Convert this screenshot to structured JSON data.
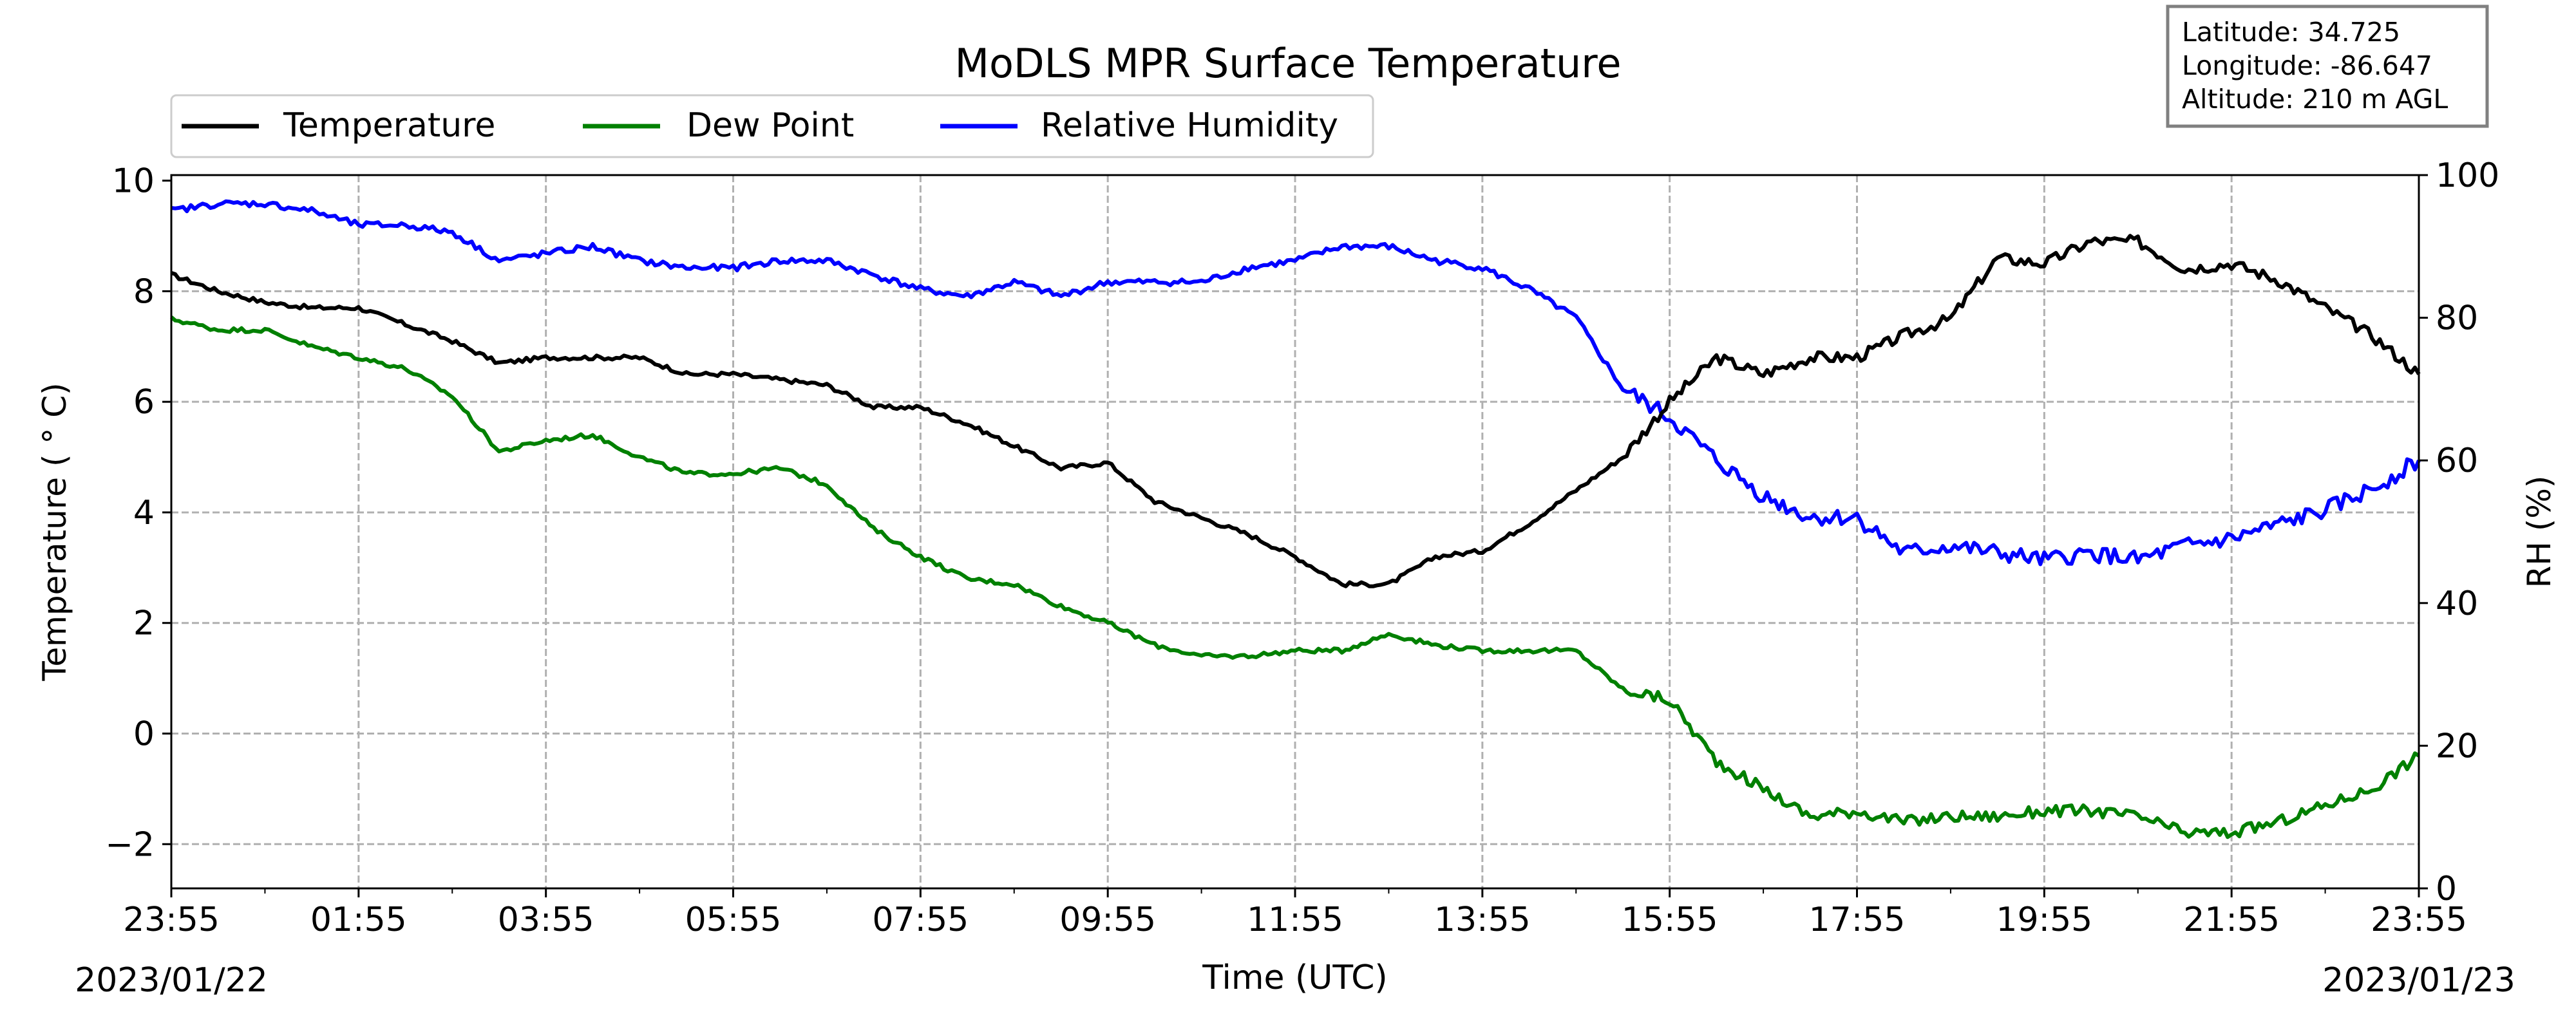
{
  "chart_data": {
    "type": "line",
    "title": "MoDLS MPR Surface Temperature",
    "xlabel": "Time (UTC)",
    "ylabel_left": "Temperature ( ° C)",
    "ylabel_right": "RH (%)",
    "x_ticks": [
      "23:55",
      "01:55",
      "03:55",
      "05:55",
      "07:55",
      "09:55",
      "11:55",
      "13:55",
      "15:55",
      "17:55",
      "19:55",
      "21:55",
      "23:55"
    ],
    "start_date_label": "2023/01/22",
    "end_date_label": "2023/01/23",
    "ylim_left": [
      -2.8,
      10.1
    ],
    "ylim_right": [
      0,
      100
    ],
    "y_ticks_left": [
      "−2",
      "0",
      "2",
      "4",
      "6",
      "8",
      "10"
    ],
    "y_tick_values_left": [
      -2,
      0,
      2,
      4,
      6,
      8,
      10
    ],
    "y_ticks_right": [
      "0",
      "20",
      "40",
      "60",
      "80",
      "100"
    ],
    "y_tick_values_right": [
      0,
      20,
      40,
      60,
      80,
      100
    ],
    "grid": true,
    "legend_position": "top-left",
    "info_box": [
      "Latitude: 34.725",
      "Longitude: -86.647",
      "Altitude: 210 m AGL"
    ],
    "x_hours_since_2355": [
      0,
      0.5,
      1,
      1.5,
      2,
      2.5,
      3,
      3.5,
      4,
      4.5,
      5,
      5.5,
      6,
      6.5,
      7,
      7.5,
      8,
      8.5,
      9,
      9.5,
      10,
      10.5,
      11,
      11.5,
      12,
      12.5,
      13,
      13.5,
      14,
      14.5,
      15,
      15.5,
      16,
      16.5,
      17,
      17.5,
      18,
      18.5,
      19,
      19.5,
      20,
      20.5,
      21,
      21.5,
      22,
      22.5,
      23,
      23.5,
      24
    ],
    "series": [
      {
        "name": "Temperature",
        "color": "#000000",
        "axis": "left",
        "values": [
          8.3,
          8.0,
          7.8,
          7.7,
          7.7,
          7.4,
          7.1,
          6.7,
          6.8,
          6.8,
          6.8,
          6.5,
          6.5,
          6.4,
          6.3,
          5.9,
          5.9,
          5.6,
          5.2,
          4.8,
          4.9,
          4.2,
          3.9,
          3.6,
          3.2,
          2.7,
          2.7,
          3.2,
          3.3,
          3.8,
          4.4,
          5.0,
          6.0,
          6.8,
          6.5,
          6.8,
          6.8,
          7.2,
          7.5,
          8.6,
          8.5,
          8.9,
          8.9,
          8.4,
          8.5,
          8.2,
          7.7,
          7.2,
          6.5
        ]
      },
      {
        "name": "Dew Point",
        "color": "#008000",
        "axis": "left",
        "values": [
          7.5,
          7.3,
          7.3,
          7.0,
          6.8,
          6.6,
          6.1,
          5.1,
          5.3,
          5.4,
          5.0,
          4.7,
          4.7,
          4.8,
          4.5,
          3.7,
          3.2,
          2.8,
          2.7,
          2.3,
          2.0,
          1.6,
          1.4,
          1.4,
          1.5,
          1.5,
          1.8,
          1.6,
          1.5,
          1.5,
          1.5,
          0.8,
          0.6,
          -0.5,
          -1.0,
          -1.5,
          -1.4,
          -1.6,
          -1.5,
          -1.5,
          -1.4,
          -1.4,
          -1.5,
          -1.8,
          -1.8,
          -1.6,
          -1.3,
          -1.0,
          -0.4
        ]
      },
      {
        "name": "Relative Humidity",
        "color": "#0000ff",
        "axis": "right",
        "values": [
          95,
          96,
          96,
          95,
          93,
          93,
          92,
          88,
          89,
          90,
          88,
          87,
          87,
          88,
          88,
          86,
          84,
          83,
          85,
          83,
          85,
          85,
          85,
          87,
          88,
          90,
          90,
          88,
          87,
          84,
          80,
          70,
          66,
          60,
          55,
          52,
          52,
          47,
          48,
          47,
          46,
          47,
          46,
          48,
          49,
          51,
          53,
          56,
          60
        ]
      }
    ]
  }
}
